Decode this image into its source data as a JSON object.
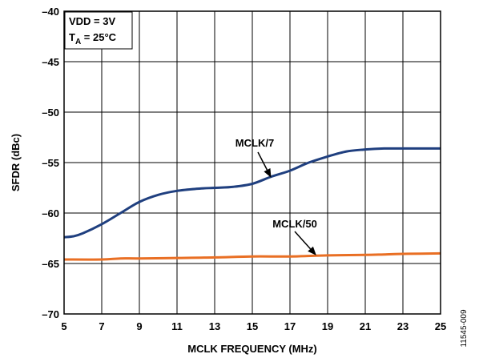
{
  "chart_data": {
    "type": "line",
    "xlabel": "MCLK FREQUENCY (MHz)",
    "ylabel": "SFDR (dBc)",
    "xlim": [
      5,
      25
    ],
    "ylim": [
      -70,
      -40
    ],
    "xticks": [
      5,
      7,
      9,
      11,
      13,
      15,
      17,
      19,
      21,
      23,
      25
    ],
    "yticks": [
      -70,
      -65,
      -60,
      -55,
      -50,
      -45,
      -40
    ],
    "xtick_labels": [
      "5",
      "7",
      "9",
      "11",
      "13",
      "15",
      "17",
      "19",
      "21",
      "23",
      "25"
    ],
    "ytick_labels": [
      "–70",
      "–65",
      "–60",
      "–55",
      "–50",
      "–45",
      "–40"
    ],
    "grid": true,
    "conditions": {
      "line1": "VDD = 3V",
      "line2_prefix": "T",
      "line2_sub": "A",
      "line2_suffix": " = 25°C"
    },
    "series": [
      {
        "name": "MCLK/7",
        "color": "#1f3f7f",
        "x": [
          5,
          5.5,
          6,
          7,
          8,
          9,
          10,
          11,
          12,
          13,
          14,
          15,
          16,
          17,
          18,
          19,
          20,
          21,
          22,
          23,
          24,
          25
        ],
        "y": [
          -62.4,
          -62.3,
          -62.0,
          -61.1,
          -60.0,
          -58.9,
          -58.2,
          -57.8,
          -57.6,
          -57.5,
          -57.4,
          -57.1,
          -56.4,
          -55.8,
          -55.0,
          -54.4,
          -53.9,
          -53.7,
          -53.6,
          -53.6,
          -53.6,
          -53.6
        ]
      },
      {
        "name": "MCLK/50",
        "color": "#e96f24",
        "x": [
          5,
          7,
          8,
          9,
          11,
          13,
          15,
          17,
          19,
          21,
          22,
          23,
          25
        ],
        "y": [
          -64.6,
          -64.6,
          -64.5,
          -64.5,
          -64.45,
          -64.4,
          -64.3,
          -64.3,
          -64.2,
          -64.15,
          -64.1,
          -64.05,
          -64.0
        ]
      }
    ],
    "annotations": [
      {
        "text": "MCLK/7",
        "points_to_x": 16,
        "points_to_y": -56.5
      },
      {
        "text": "MCLK/50",
        "points_to_x": 18.4,
        "points_to_y": -64.2
      }
    ],
    "figure_id": "11545-009"
  }
}
